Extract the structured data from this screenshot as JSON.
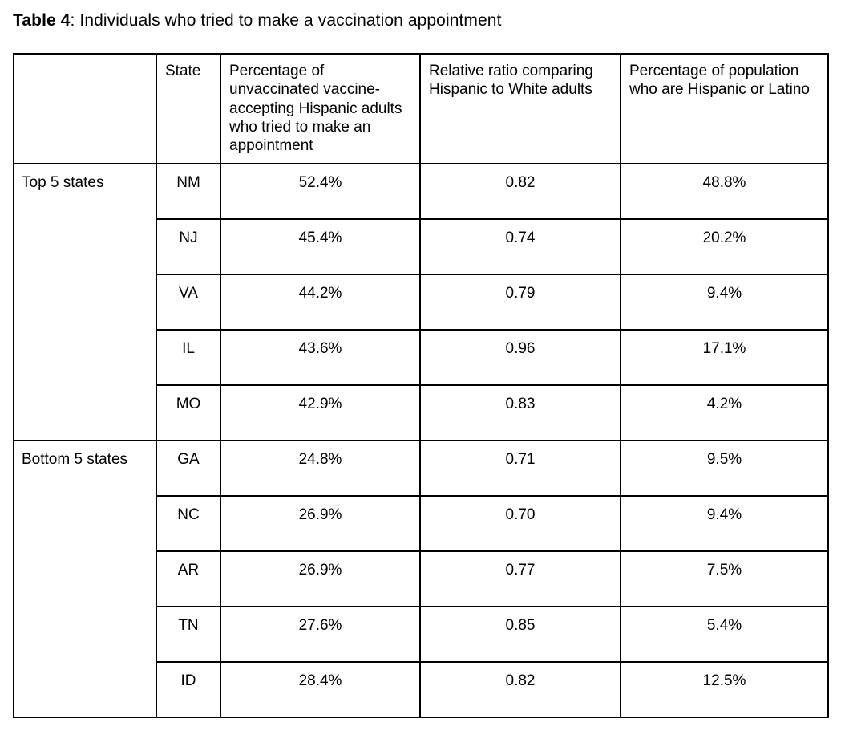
{
  "caption": {
    "label": "Table 4",
    "text": ": Individuals who tried to make a vaccination appointment"
  },
  "table": {
    "columns": {
      "group": "",
      "state": "State",
      "pct_tried": "Percentage of unvaccinated vaccine-accepting Hispanic adults who tried to make an appointment",
      "relative_ratio": "Relative ratio comparing Hispanic to White adults",
      "pct_population": "Percentage of population who are Hispanic or Latino"
    },
    "groups": [
      {
        "label": "Top 5 states",
        "rows": [
          {
            "state": "NM",
            "pct_tried": "52.4%",
            "relative_ratio": "0.82",
            "pct_population": "48.8%"
          },
          {
            "state": "NJ",
            "pct_tried": "45.4%",
            "relative_ratio": "0.74",
            "pct_population": "20.2%"
          },
          {
            "state": "VA",
            "pct_tried": "44.2%",
            "relative_ratio": "0.79",
            "pct_population": "9.4%"
          },
          {
            "state": "IL",
            "pct_tried": "43.6%",
            "relative_ratio": "0.96",
            "pct_population": "17.1%"
          },
          {
            "state": "MO",
            "pct_tried": "42.9%",
            "relative_ratio": "0.83",
            "pct_population": "4.2%"
          }
        ]
      },
      {
        "label": "Bottom 5 states",
        "rows": [
          {
            "state": "GA",
            "pct_tried": "24.8%",
            "relative_ratio": "0.71",
            "pct_population": "9.5%"
          },
          {
            "state": "NC",
            "pct_tried": "26.9%",
            "relative_ratio": "0.70",
            "pct_population": "9.4%"
          },
          {
            "state": "AR",
            "pct_tried": "26.9%",
            "relative_ratio": "0.77",
            "pct_population": "7.5%"
          },
          {
            "state": "TN",
            "pct_tried": "27.6%",
            "relative_ratio": "0.85",
            "pct_population": "5.4%"
          },
          {
            "state": "ID",
            "pct_tried": "28.4%",
            "relative_ratio": "0.82",
            "pct_population": "12.5%"
          }
        ]
      }
    ]
  },
  "colors": {
    "border": "#000000",
    "text": "#000000",
    "background": "#ffffff"
  }
}
